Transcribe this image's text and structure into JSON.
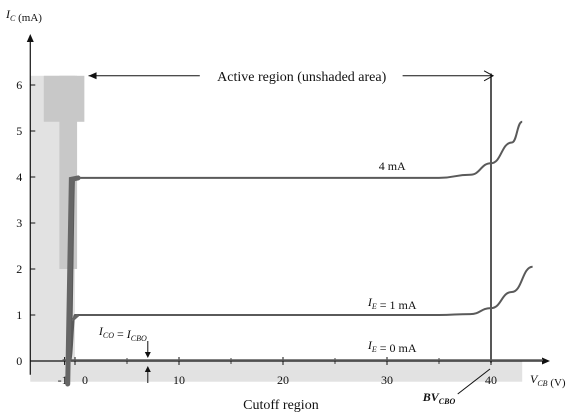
{
  "chart_data": {
    "type": "line",
    "title": "",
    "ylabel": {
      "main": "I",
      "sub": "C",
      "unit": "(mA)"
    },
    "xlabel": {
      "main": "V",
      "sub": "CB",
      "unit": "(V)"
    },
    "xlim": [
      -2,
      45
    ],
    "ylim": [
      0,
      6.5
    ],
    "x_ticks": [
      -1,
      0,
      10,
      20,
      30,
      40
    ],
    "x_minor_ticks": [
      5,
      15,
      25,
      35
    ],
    "y_ticks": [
      0,
      1,
      2,
      3,
      4,
      5,
      6
    ],
    "series": [
      {
        "name": "4 mA",
        "label_parts": {
          "text": "4  mA"
        },
        "x": [
          -0.5,
          0,
          10,
          20,
          30,
          35,
          38,
          40,
          42,
          43
        ],
        "y": [
          0,
          3.98,
          3.98,
          3.98,
          3.98,
          3.98,
          4.05,
          4.3,
          4.75,
          5.2
        ]
      },
      {
        "name": "I_E = 1 mA",
        "label_parts": {
          "main": "I",
          "sub": "E",
          "rest": " = 1 mA"
        },
        "x": [
          -0.5,
          0,
          10,
          20,
          30,
          35,
          38,
          40,
          42,
          44
        ],
        "y": [
          0,
          1.0,
          1.0,
          1.0,
          1.0,
          1.0,
          1.02,
          1.15,
          1.5,
          2.05
        ]
      },
      {
        "name": "I_E = 0 mA",
        "label_parts": {
          "main": "I",
          "sub": "E",
          "rest": " = 0 mA"
        },
        "x": [
          -1.2,
          0,
          10,
          20,
          30,
          40,
          45
        ],
        "y": [
          0.02,
          0.02,
          0.02,
          0.02,
          0.02,
          0.02,
          0.02
        ]
      }
    ],
    "annotations": {
      "active_region": "Active region (unshaded area)",
      "cutoff_region": "Cutoff region",
      "ico": {
        "left_main": "I",
        "left_sub": "CO",
        "eq": " = ",
        "right_main": "I",
        "right_sub": "CBO",
        "x": 7
      },
      "breakdown": {
        "main": "BV",
        "sub": "CBO",
        "x": 40
      }
    },
    "shading": {
      "saturation_region": {
        "x_from": -1.5,
        "x_to": 0,
        "y_from": 2.0,
        "y_to": 6.2
      },
      "cutoff_region": {
        "x_from": -2,
        "x_to": 43,
        "y_from": -0.45,
        "y_to": 0
      }
    },
    "grid": false,
    "legend": "none"
  },
  "colors": {
    "shade_dark": "#c8c8c8",
    "shade_light": "#e2e2e2",
    "curve": "#5a5a5a",
    "axis": "#111111",
    "thick_line": "#666666"
  }
}
